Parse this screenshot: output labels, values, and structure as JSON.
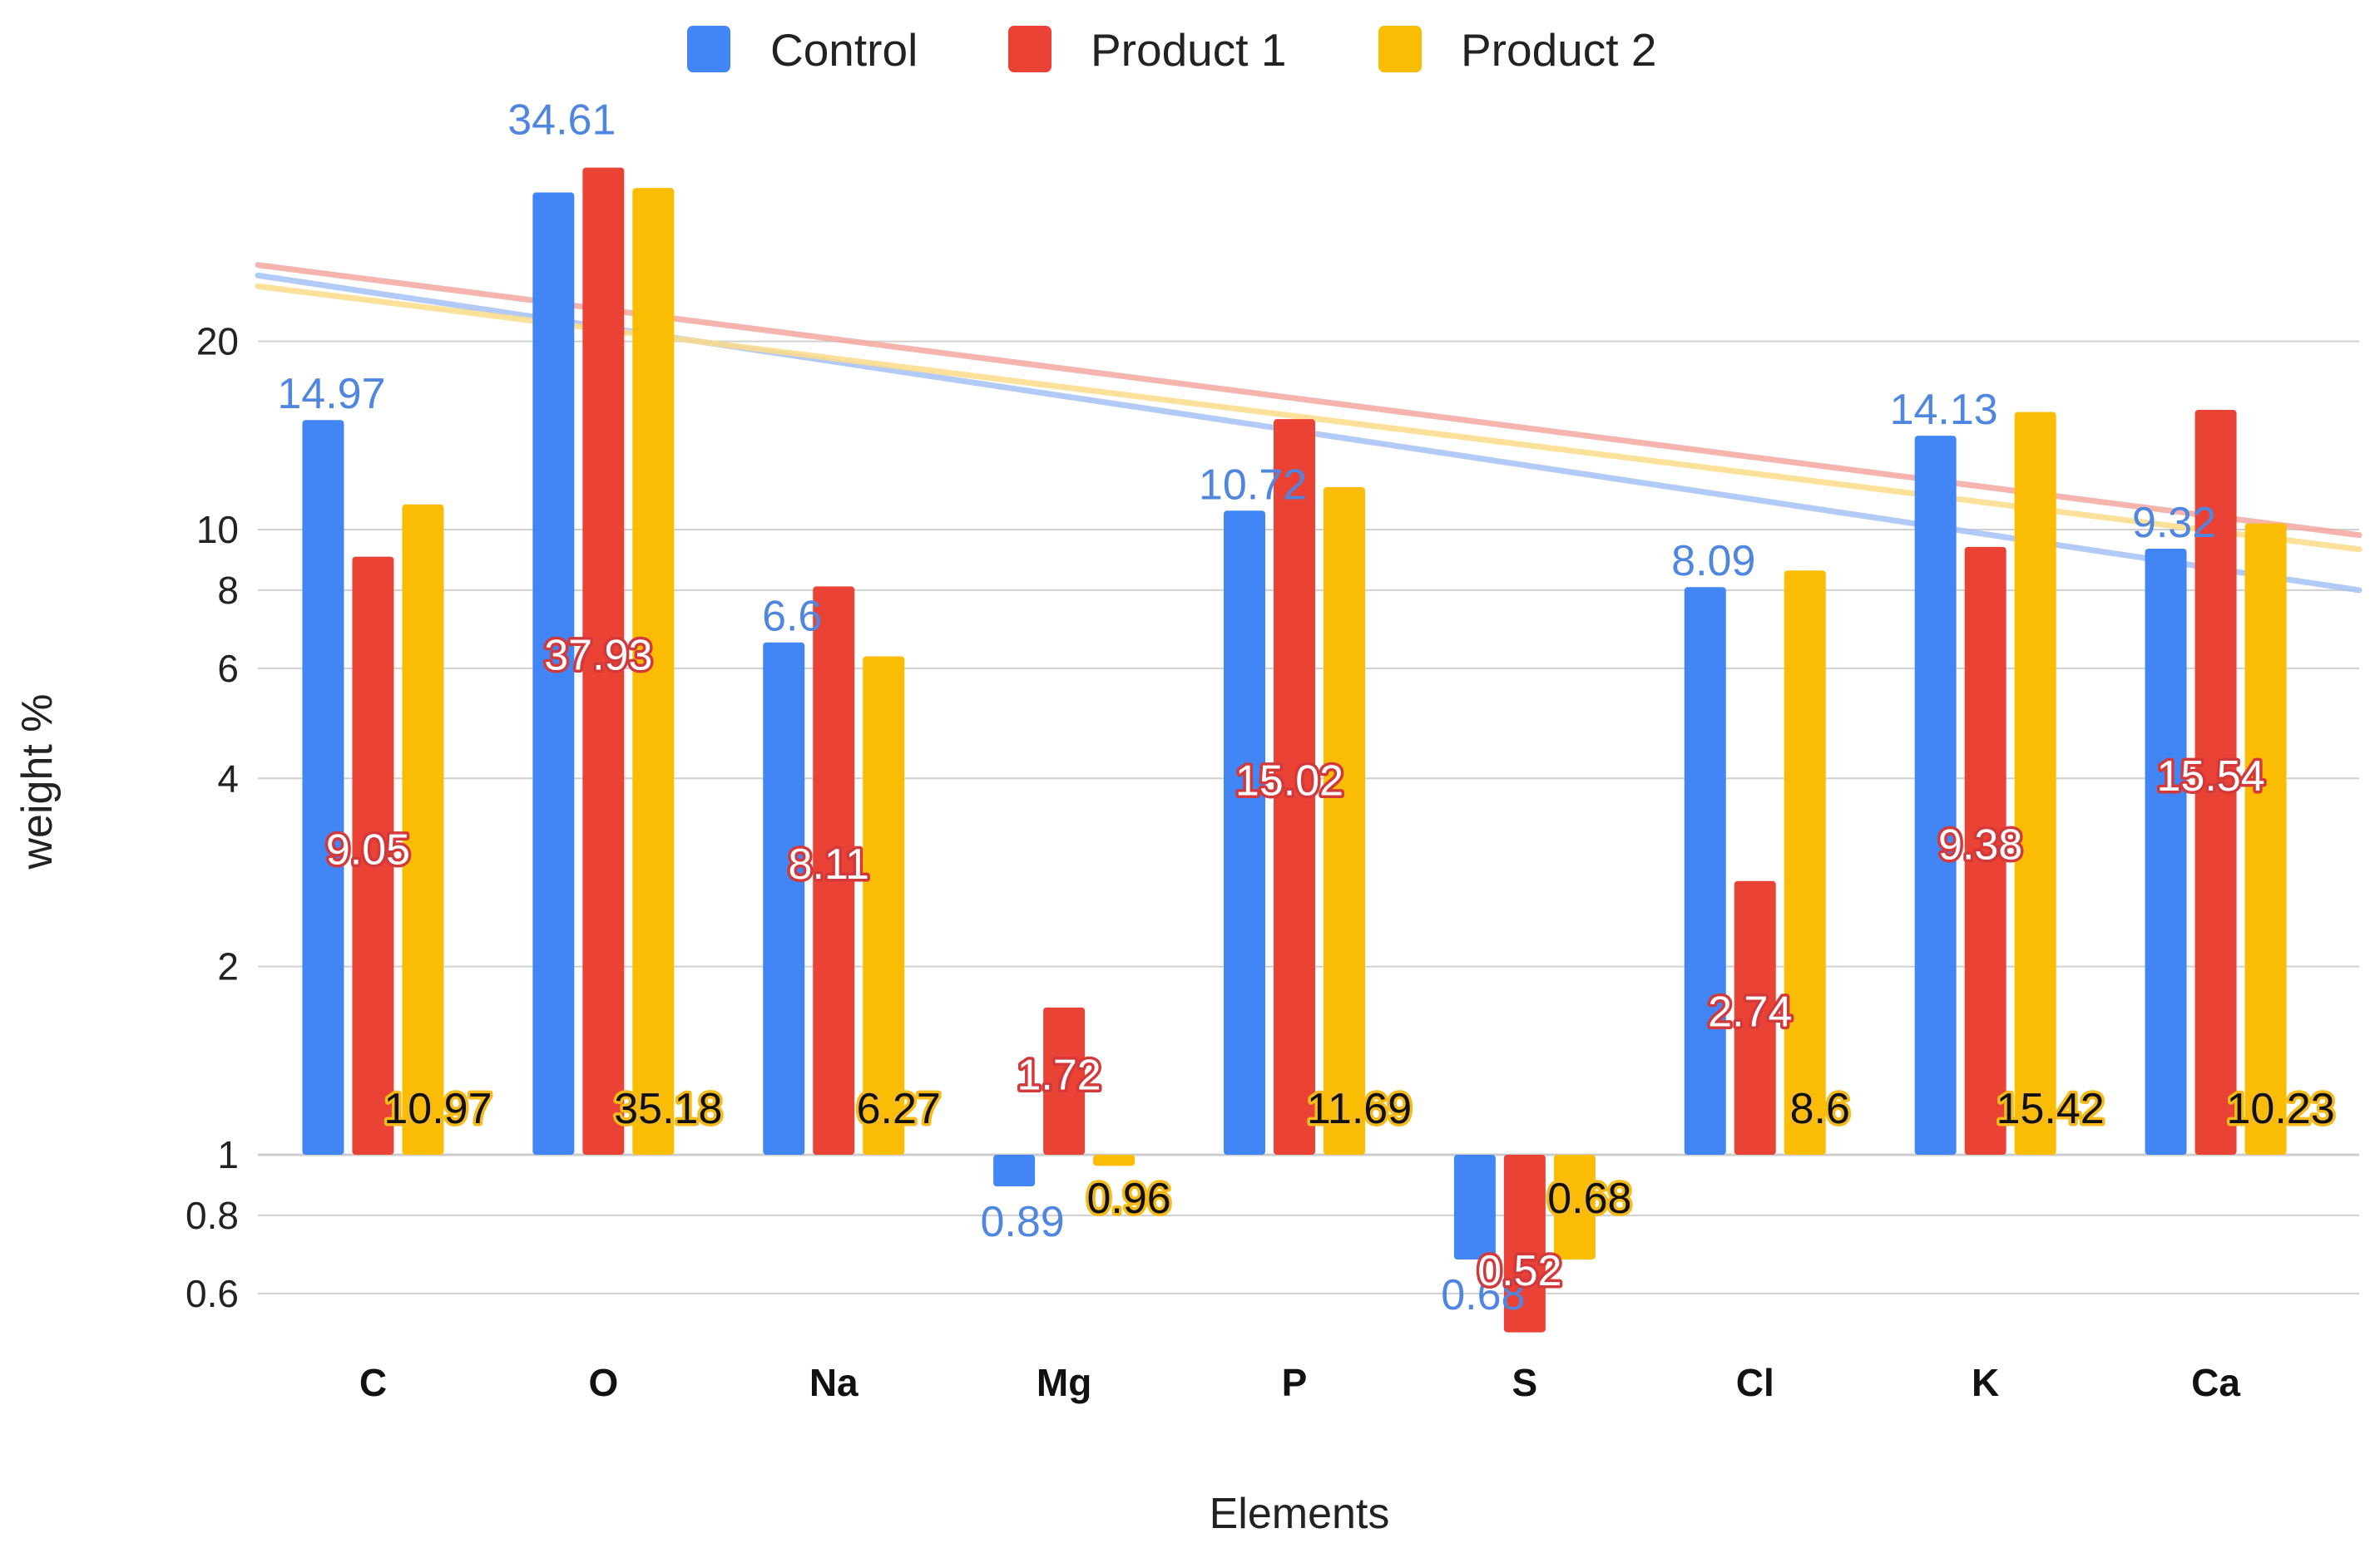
{
  "chart_data": {
    "type": "bar",
    "scale": "log",
    "categories": [
      "C",
      "O",
      "Na",
      "Mg",
      "P",
      "S",
      "Cl",
      "K",
      "Ca"
    ],
    "series": [
      {
        "name": "Control",
        "color": "#4285f4",
        "trend_color": "#a4c2f4",
        "values": [
          14.97,
          34.61,
          6.6,
          0.89,
          10.72,
          0.68,
          8.09,
          14.13,
          9.32
        ]
      },
      {
        "name": "Product 1",
        "color": "#ea4335",
        "trend_color": "#f4a7a0",
        "values": [
          9.05,
          37.93,
          8.11,
          1.72,
          15.02,
          0.52,
          2.74,
          9.38,
          15.54
        ]
      },
      {
        "name": "Product 2",
        "color": "#fbbc04",
        "trend_color": "#fbdc8a",
        "values": [
          10.97,
          35.18,
          6.27,
          0.96,
          11.69,
          0.68,
          8.6,
          15.42,
          10.23
        ]
      }
    ],
    "data_labels": [
      [
        "14.97",
        "34.61",
        "6.6",
        "0.89",
        "10.72",
        "0.68",
        "8.09",
        "14.13",
        "9.32"
      ],
      [
        "9.05",
        "37.93",
        "8.11",
        "1.72",
        "15.02",
        "0.52",
        "2.74",
        "9.38",
        "15.54"
      ],
      [
        "10.97",
        "35.18",
        "6.27",
        "0.96",
        "11.69",
        "0.68",
        "8.6",
        "15.42",
        "10.23"
      ]
    ],
    "trendlines": [
      {
        "series": "Control",
        "start": 25.5,
        "end": 8.0
      },
      {
        "series": "Product 1",
        "start": 26.5,
        "end": 9.8
      },
      {
        "series": "Product 2",
        "start": 24.5,
        "end": 9.3
      }
    ],
    "baseline": 1,
    "yticks": [
      0.6,
      0.8,
      1,
      2,
      4,
      6,
      8,
      10,
      20
    ],
    "ytick_labels": [
      "0.6",
      "0.8",
      "1",
      "2",
      "4",
      "6",
      "8",
      "10",
      "20"
    ],
    "ylim": [
      0.52,
      40
    ],
    "title": "",
    "xlabel": "Elements",
    "ylabel": "weight %",
    "legend_position": "top-center"
  }
}
